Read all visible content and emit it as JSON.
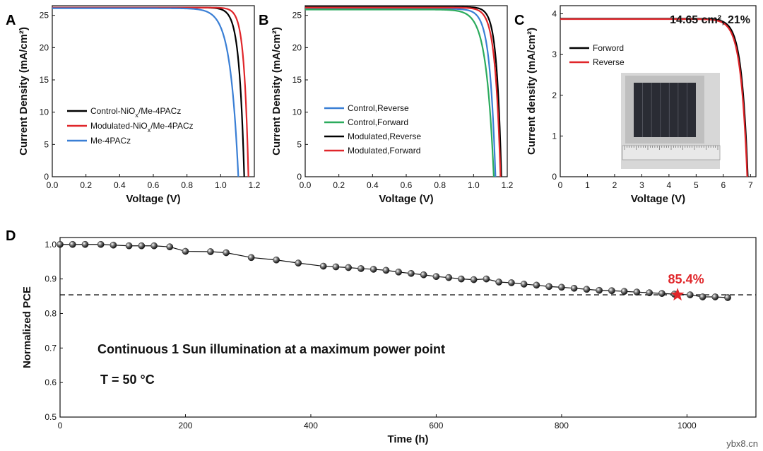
{
  "watermark": "ybx8.cn",
  "chart_data": [
    {
      "panel": "A",
      "type": "line",
      "xlabel": "Voltage (V)",
      "ylabel": "Current Density (mA/cm²)",
      "xlim": [
        0,
        1.2
      ],
      "ylim": [
        0,
        26.5
      ],
      "xticks": [
        0.0,
        0.2,
        0.4,
        0.6,
        0.8,
        1.0,
        1.2
      ],
      "yticks": [
        0,
        5,
        10,
        15,
        20,
        25
      ],
      "xtick_labels": [
        "0.0",
        "0.2",
        "0.4",
        "0.6",
        "0.8",
        "1.0",
        "1.2"
      ],
      "ytick_labels": [
        "0",
        "5",
        "10",
        "15",
        "20",
        "25"
      ],
      "legend_position": "left",
      "series": [
        {
          "name": "Control-NiO",
          "sub": "x",
          "name_rest": "/Me-4PACz",
          "color": "#000000",
          "jsc": 26.2,
          "voc": 1.14,
          "k": 0.03
        },
        {
          "name": "Modulated-NiO",
          "sub": "x",
          "name_rest": "/Me-4PACz",
          "color": "#e0262a",
          "jsc": 26.2,
          "voc": 1.165,
          "k": 0.026
        },
        {
          "name": "Me-4PACz",
          "sub": "",
          "name_rest": "",
          "color": "#3a7fd5",
          "jsc": 26.1,
          "voc": 1.105,
          "k": 0.048
        }
      ]
    },
    {
      "panel": "B",
      "type": "line",
      "xlabel": "Voltage (V)",
      "ylabel": "Current Density (mA/cm²)",
      "xlim": [
        0,
        1.2
      ],
      "ylim": [
        0,
        26.5
      ],
      "xticks": [
        0.0,
        0.2,
        0.4,
        0.6,
        0.8,
        1.0,
        1.2
      ],
      "yticks": [
        0,
        5,
        10,
        15,
        20,
        25
      ],
      "xtick_labels": [
        "0.0",
        "0.2",
        "0.4",
        "0.6",
        "0.8",
        "1.0",
        "1.2"
      ],
      "ytick_labels": [
        "0",
        "5",
        "10",
        "15",
        "20",
        "25"
      ],
      "legend_position": "left",
      "series": [
        {
          "name": "Control,Reverse",
          "color": "#3a7fd5",
          "jsc": 26.0,
          "voc": 1.13,
          "k": 0.034
        },
        {
          "name": "Control,Forward",
          "color": "#2bab5d",
          "jsc": 25.9,
          "voc": 1.12,
          "k": 0.045
        },
        {
          "name": "Modulated,Reverse",
          "color": "#000000",
          "jsc": 26.3,
          "voc": 1.165,
          "k": 0.028
        },
        {
          "name": "Modulated,Forward",
          "color": "#e0262a",
          "jsc": 26.2,
          "voc": 1.16,
          "k": 0.032
        }
      ]
    },
    {
      "panel": "C",
      "type": "line",
      "xlabel": "Voltage (V)",
      "ylabel": "Current density (mA/cm²)",
      "xlim": [
        0,
        7.2
      ],
      "ylim": [
        0,
        4.2
      ],
      "xticks": [
        0,
        1,
        2,
        3,
        4,
        5,
        6,
        7
      ],
      "yticks": [
        0,
        1,
        2,
        3,
        4
      ],
      "xtick_labels": [
        "0",
        "1",
        "2",
        "3",
        "4",
        "5",
        "6",
        "7"
      ],
      "ytick_labels": [
        "0",
        "1",
        "2",
        "3",
        "4"
      ],
      "annotation": "14.65 cm², 21%",
      "legend_position": "left",
      "series": [
        {
          "name": "Forword",
          "color": "#000000",
          "jsc": 3.88,
          "voc": 6.9,
          "k": 0.23
        },
        {
          "name": "Reverse",
          "color": "#e0262a",
          "jsc": 3.87,
          "voc": 6.88,
          "k": 0.24
        }
      ]
    },
    {
      "panel": "D",
      "type": "scatter",
      "xlabel": "Time (h)",
      "ylabel": "Normalized PCE",
      "xlim": [
        0,
        1110
      ],
      "ylim": [
        0.5,
        1.02
      ],
      "xticks": [
        0,
        200,
        400,
        600,
        800,
        1000
      ],
      "yticks": [
        0.5,
        0.6,
        0.7,
        0.8,
        0.9,
        1.0
      ],
      "xtick_labels": [
        "0",
        "200",
        "400",
        "600",
        "800",
        "1000"
      ],
      "ytick_labels": [
        "0.5",
        "0.6",
        "0.7",
        "0.8",
        "0.9",
        "1.0"
      ],
      "reference_line": 0.854,
      "star_point": {
        "x": 985,
        "y": 0.854,
        "label": "85.4%",
        "color": "#e0262a"
      },
      "text_lines": [
        "Continuous 1 Sun illumination at a maximum power point",
        "T = 50 °C"
      ],
      "x": [
        0,
        20,
        40,
        65,
        85,
        110,
        130,
        150,
        175,
        200,
        240,
        265,
        305,
        345,
        380,
        420,
        440,
        460,
        480,
        500,
        520,
        540,
        560,
        580,
        600,
        620,
        640,
        660,
        680,
        700,
        720,
        740,
        760,
        780,
        800,
        820,
        840,
        860,
        880,
        900,
        920,
        940,
        960,
        980,
        1005,
        1025,
        1045,
        1065
      ],
      "y": [
        1.0,
        1.0,
        1.0,
        1.0,
        0.998,
        0.996,
        0.996,
        0.996,
        0.993,
        0.98,
        0.979,
        0.976,
        0.962,
        0.955,
        0.946,
        0.937,
        0.935,
        0.933,
        0.93,
        0.928,
        0.925,
        0.92,
        0.916,
        0.912,
        0.907,
        0.904,
        0.9,
        0.898,
        0.9,
        0.891,
        0.889,
        0.885,
        0.882,
        0.878,
        0.876,
        0.873,
        0.87,
        0.867,
        0.866,
        0.864,
        0.862,
        0.86,
        0.858,
        0.856,
        0.854,
        0.848,
        0.848,
        0.846
      ]
    }
  ]
}
